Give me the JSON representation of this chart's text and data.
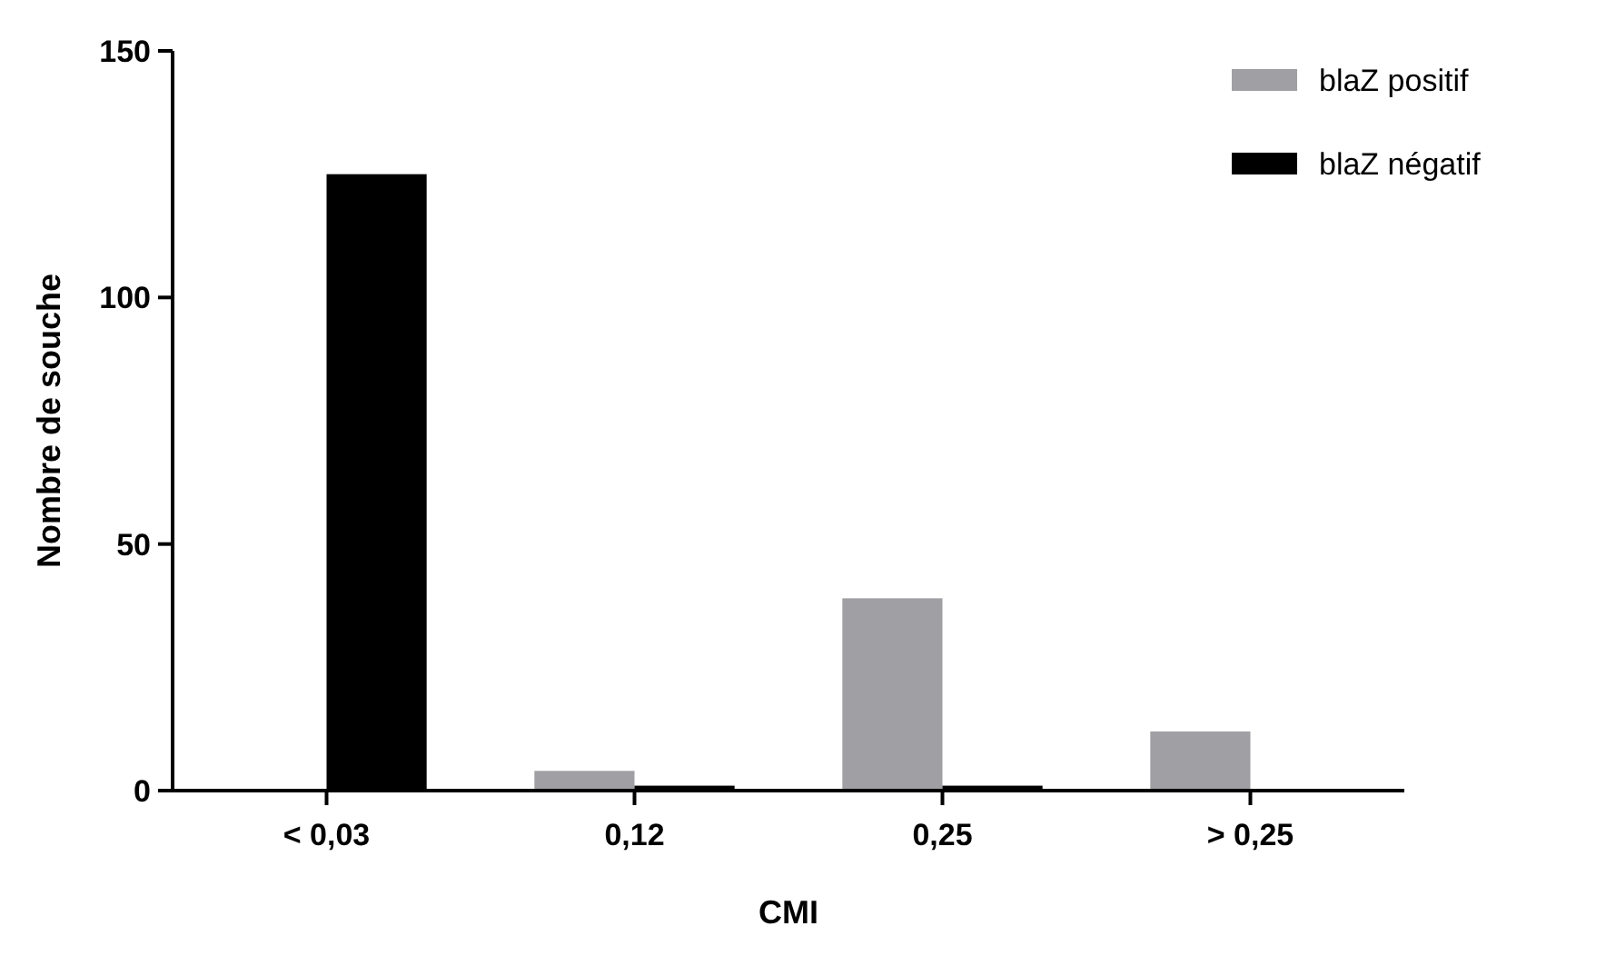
{
  "chart_data": {
    "type": "bar",
    "xlabel": "CMI",
    "ylabel": "Nombre de souche",
    "categories": [
      "< 0,03",
      "0,12",
      "0,25",
      "> 0,25"
    ],
    "series": [
      {
        "name": "blaZ positif",
        "color": "#a0a0a4",
        "values": [
          0,
          4,
          39,
          12
        ]
      },
      {
        "name": "blaZ négatif",
        "color": "#000000",
        "values": [
          125,
          1,
          1,
          0
        ]
      }
    ],
    "ylim": [
      0,
      150
    ],
    "yticks": [
      0,
      50,
      100,
      150
    ],
    "grid": false,
    "legend": "top right"
  }
}
